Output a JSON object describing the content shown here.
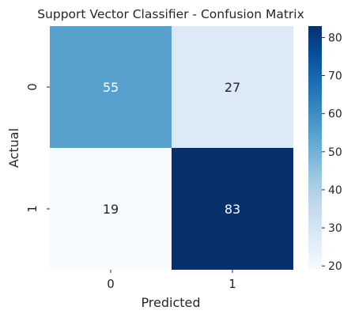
{
  "chart_data": {
    "type": "heatmap",
    "title": "Support Vector Classifier - Confusion Matrix",
    "xlabel": "Predicted",
    "ylabel": "Actual",
    "x_categories": [
      "0",
      "1"
    ],
    "y_categories": [
      "0",
      "1"
    ],
    "values": [
      [
        55,
        27
      ],
      [
        19,
        83
      ]
    ],
    "colormap": "Blues",
    "colorbar": {
      "range": [
        19,
        83
      ],
      "ticks": [
        20,
        30,
        40,
        50,
        60,
        70,
        80
      ]
    },
    "cell_colors": [
      [
        "#58a1cf",
        "#dce9f6"
      ],
      [
        "#f7fbff",
        "#08306b"
      ]
    ],
    "annotation_colors": [
      [
        "#ffffff",
        "#262626"
      ],
      [
        "#262626",
        "#ffffff"
      ]
    ],
    "grid": false
  }
}
